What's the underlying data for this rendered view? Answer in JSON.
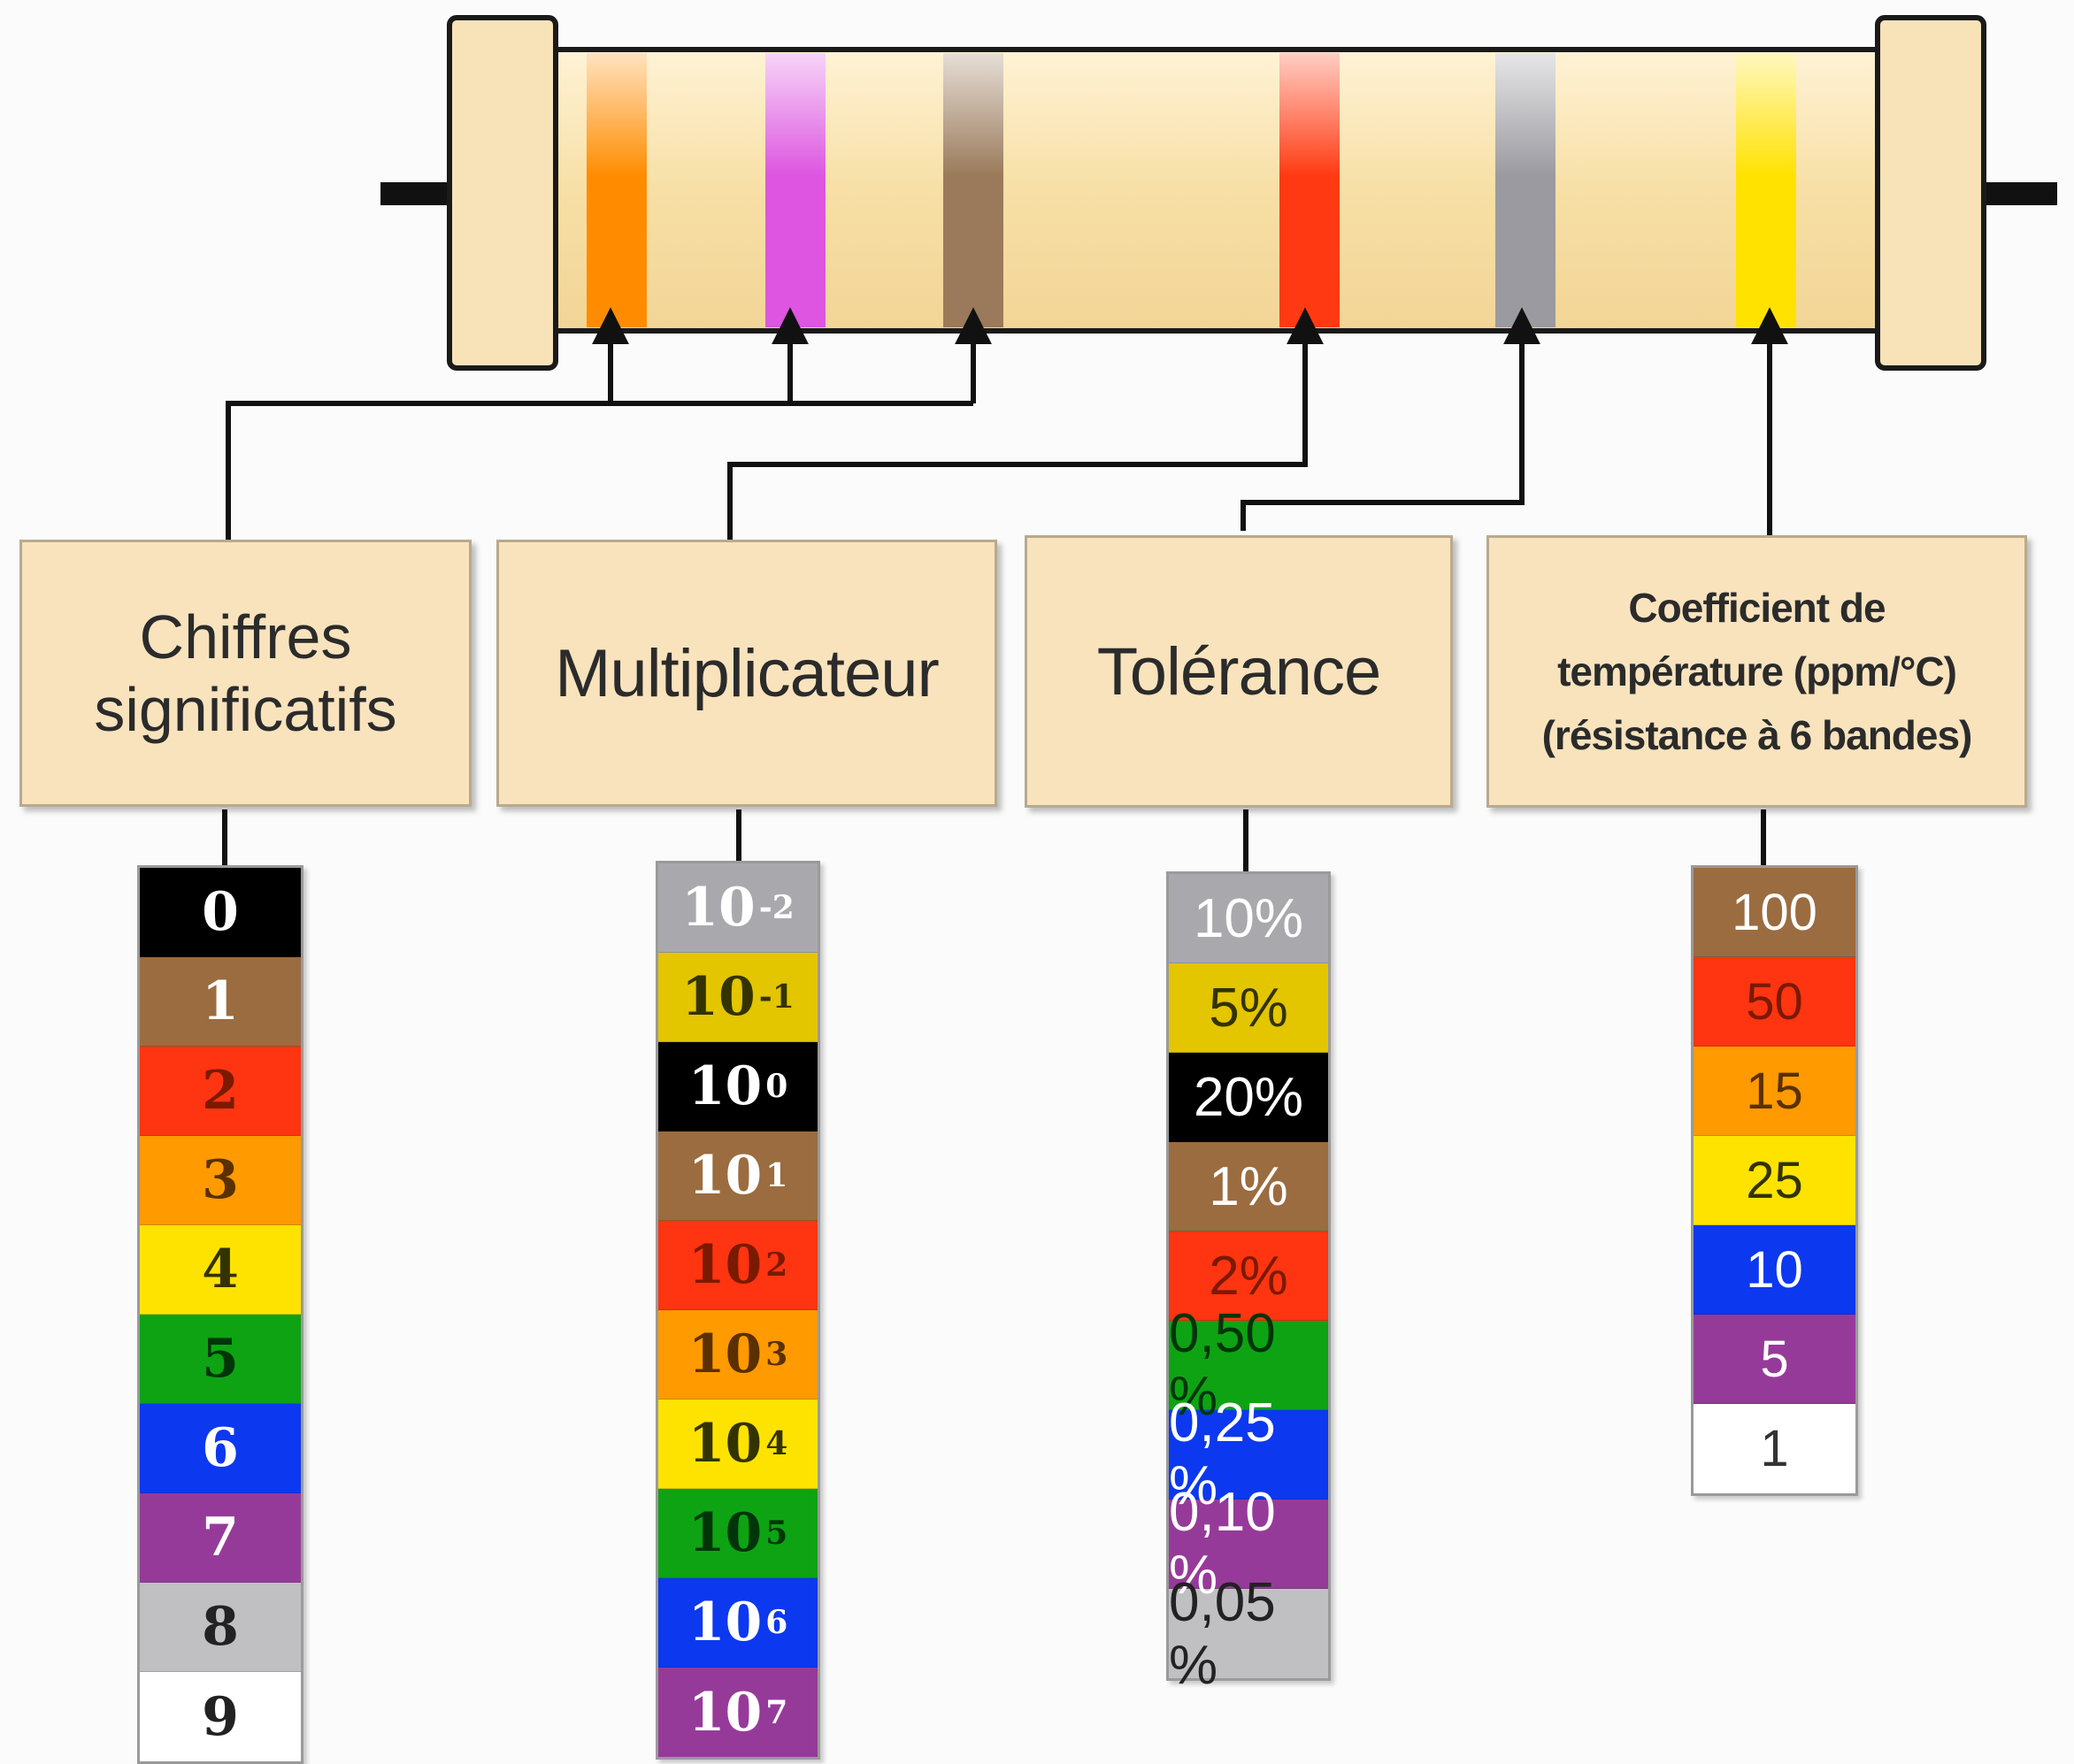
{
  "title": "",
  "resistor": {
    "bands": [
      {
        "name": "orange-band",
        "color": "#ff8c00"
      },
      {
        "name": "violet-band",
        "color": "#dd55e0"
      },
      {
        "name": "brown-band",
        "color": "#9a7a5a"
      },
      {
        "name": "red-band",
        "color": "#ff3a12"
      },
      {
        "name": "gray-band",
        "color": "#9a9aa0"
      },
      {
        "name": "yellow-band",
        "color": "#ffe200"
      }
    ],
    "body_color": "#f7dfa5",
    "lead_color": "#111111"
  },
  "boxes": {
    "digits": {
      "line1": "Chiffres",
      "line2": "significatifs"
    },
    "multiplier": {
      "label": "Multiplicateur"
    },
    "tolerance": {
      "label": "Tolérance"
    },
    "tempco": {
      "line1": "Coefficient de",
      "line2": "température (ppm/°C)",
      "line3": "(résistance à 6 bandes)"
    }
  },
  "digits": [
    {
      "label": "0",
      "bg": "#000000",
      "fg": "#ffffff"
    },
    {
      "label": "1",
      "bg": "#9b6c3f",
      "fg": "#ffffff"
    },
    {
      "label": "2",
      "bg": "#ff3410",
      "fg": "#7a1a00"
    },
    {
      "label": "3",
      "bg": "#ff9a00",
      "fg": "#5a3000"
    },
    {
      "label": "4",
      "bg": "#ffe300",
      "fg": "#333300"
    },
    {
      "label": "5",
      "bg": "#0da313",
      "fg": "#00350a"
    },
    {
      "label": "6",
      "bg": "#0c38ef",
      "fg": "#ffffff"
    },
    {
      "label": "7",
      "bg": "#963a9a",
      "fg": "#ffffff"
    },
    {
      "label": "8",
      "bg": "#c0c0c2",
      "fg": "#222222"
    },
    {
      "label": "9",
      "bg": "#ffffff",
      "fg": "#222222"
    }
  ],
  "multipliers": [
    {
      "base": "10",
      "exp": "-2",
      "bg": "#a9a9ad",
      "fg": "#ffffff"
    },
    {
      "base": "10",
      "exp": "-1",
      "bg": "#e3c500",
      "fg": "#333300"
    },
    {
      "base": "10",
      "exp": "0",
      "bg": "#000000",
      "fg": "#ffffff"
    },
    {
      "base": "10",
      "exp": "1",
      "bg": "#9b6c3f",
      "fg": "#ffffff"
    },
    {
      "base": "10",
      "exp": "2",
      "bg": "#ff3410",
      "fg": "#7a1a00"
    },
    {
      "base": "10",
      "exp": "3",
      "bg": "#ff9a00",
      "fg": "#5a3000"
    },
    {
      "base": "10",
      "exp": "4",
      "bg": "#ffe300",
      "fg": "#333300"
    },
    {
      "base": "10",
      "exp": "5",
      "bg": "#0da313",
      "fg": "#00350a"
    },
    {
      "base": "10",
      "exp": "6",
      "bg": "#0c38ef",
      "fg": "#ffffff"
    },
    {
      "base": "10",
      "exp": "7",
      "bg": "#963a9a",
      "fg": "#ffffff"
    }
  ],
  "tolerances": [
    {
      "label": "10%",
      "bg": "#a9a9ad",
      "fg": "#ffffff"
    },
    {
      "label": "5%",
      "bg": "#e3c500",
      "fg": "#333300"
    },
    {
      "label": "20%",
      "bg": "#000000",
      "fg": "#ffffff"
    },
    {
      "label": "1%",
      "bg": "#9b6c3f",
      "fg": "#ffffff"
    },
    {
      "label": "2%",
      "bg": "#ff3410",
      "fg": "#7a1a00"
    },
    {
      "label": "0,50 %",
      "bg": "#0da313",
      "fg": "#00350a"
    },
    {
      "label": "0,25 %",
      "bg": "#0c38ef",
      "fg": "#ffffff"
    },
    {
      "label": "0,10 %",
      "bg": "#963a9a",
      "fg": "#ffffff"
    },
    {
      "label": "0,05 %",
      "bg": "#c0c0c2",
      "fg": "#222222"
    }
  ],
  "tempcos": [
    {
      "label": "100",
      "bg": "#9b6c3f",
      "fg": "#ffffff"
    },
    {
      "label": "50",
      "bg": "#ff3410",
      "fg": "#7a1a00"
    },
    {
      "label": "15",
      "bg": "#ff9a00",
      "fg": "#5a3000"
    },
    {
      "label": "25",
      "bg": "#ffe300",
      "fg": "#333300"
    },
    {
      "label": "10",
      "bg": "#0c38ef",
      "fg": "#ffffff"
    },
    {
      "label": "5",
      "bg": "#963a9a",
      "fg": "#ffffff"
    },
    {
      "label": "1",
      "bg": "#ffffff",
      "fg": "#333333"
    }
  ]
}
